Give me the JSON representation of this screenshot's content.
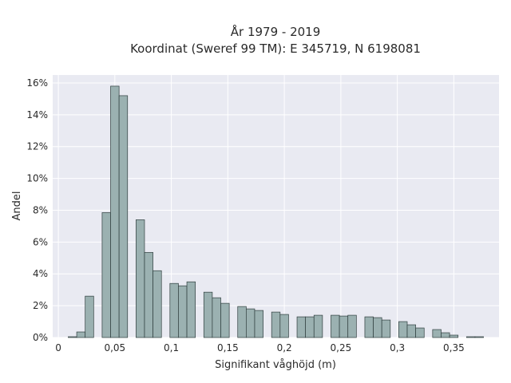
{
  "chart_data": {
    "type": "bar",
    "title_lines": [
      "År 1979 - 2019",
      "Koordinat (Sweref 99 TM): E 345719, N 6198081"
    ],
    "xlabel": "Signifikant våghöjd (m)",
    "ylabel": "Andel",
    "xlim": [
      -0.005,
      0.39
    ],
    "ylim": [
      0,
      16.5
    ],
    "x_ticks": [
      0,
      0.05,
      0.1,
      0.15,
      0.2,
      0.25,
      0.3,
      0.35
    ],
    "x_tick_labels": [
      "0",
      "0,05",
      "0,1",
      "0,15",
      "0,2",
      "0,25",
      "0,3",
      "0,35"
    ],
    "y_ticks": [
      0,
      2,
      4,
      6,
      8,
      10,
      12,
      14,
      16
    ],
    "y_tick_labels": [
      "0%",
      "2%",
      "4%",
      "6%",
      "8%",
      "10%",
      "12%",
      "14%",
      "16%"
    ],
    "bin_width": 0.0075,
    "bins": [
      {
        "x": 0.0125,
        "value": 0.05
      },
      {
        "x": 0.02,
        "value": 0.35
      },
      {
        "x": 0.0275,
        "value": 2.6
      },
      {
        "x": 0.0425,
        "value": 7.85
      },
      {
        "x": 0.05,
        "value": 15.8
      },
      {
        "x": 0.0575,
        "value": 15.2
      },
      {
        "x": 0.0725,
        "value": 7.4
      },
      {
        "x": 0.08,
        "value": 5.35
      },
      {
        "x": 0.0875,
        "value": 4.2
      },
      {
        "x": 0.1025,
        "value": 3.4
      },
      {
        "x": 0.11,
        "value": 3.25
      },
      {
        "x": 0.1175,
        "value": 3.5
      },
      {
        "x": 0.1325,
        "value": 2.85
      },
      {
        "x": 0.14,
        "value": 2.5
      },
      {
        "x": 0.1475,
        "value": 2.15
      },
      {
        "x": 0.1625,
        "value": 1.95
      },
      {
        "x": 0.17,
        "value": 1.8
      },
      {
        "x": 0.1775,
        "value": 1.7
      },
      {
        "x": 0.1925,
        "value": 1.6
      },
      {
        "x": 0.2,
        "value": 1.45
      },
      {
        "x": 0.215,
        "value": 1.3
      },
      {
        "x": 0.2225,
        "value": 1.3
      },
      {
        "x": 0.23,
        "value": 1.4
      },
      {
        "x": 0.245,
        "value": 1.4
      },
      {
        "x": 0.2525,
        "value": 1.35
      },
      {
        "x": 0.26,
        "value": 1.4
      },
      {
        "x": 0.275,
        "value": 1.3
      },
      {
        "x": 0.2825,
        "value": 1.25
      },
      {
        "x": 0.29,
        "value": 1.1
      },
      {
        "x": 0.305,
        "value": 1.0
      },
      {
        "x": 0.3125,
        "value": 0.8
      },
      {
        "x": 0.32,
        "value": 0.6
      },
      {
        "x": 0.335,
        "value": 0.5
      },
      {
        "x": 0.3425,
        "value": 0.3
      },
      {
        "x": 0.35,
        "value": 0.15
      },
      {
        "x": 0.365,
        "value": 0.05
      },
      {
        "x": 0.3725,
        "value": 0.05
      }
    ],
    "bar_color": "#9bb1b1",
    "bar_edge_color": "#2f3e3e",
    "plot_background": "#e9eaf2",
    "grid": true
  }
}
